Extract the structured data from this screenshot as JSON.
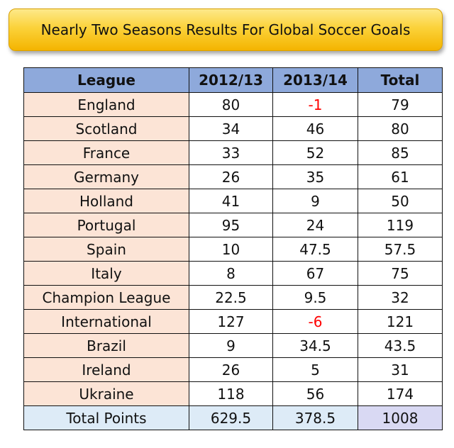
{
  "title": "Nearly Two Seasons Results For Global Soccer Goals",
  "colors": {
    "banner": "#fbd23a",
    "header": "#8ea9db",
    "league_cell": "#fce4d6",
    "total_row": "#ddebf7",
    "grand_total": "#d9d9f3",
    "negative": "#ff0000"
  },
  "chart_data": {
    "type": "table",
    "title": "Nearly Two Seasons Results For Global Soccer Goals",
    "columns": [
      "League",
      "2012/13",
      "2013/14",
      "Total"
    ],
    "rows": [
      {
        "league": "England",
        "s2012_13": "80",
        "s2013_14": "-1",
        "total": "79"
      },
      {
        "league": "Scotland",
        "s2012_13": "34",
        "s2013_14": "46",
        "total": "80"
      },
      {
        "league": "France",
        "s2012_13": "33",
        "s2013_14": "52",
        "total": "85"
      },
      {
        "league": "Germany",
        "s2012_13": "26",
        "s2013_14": "35",
        "total": "61"
      },
      {
        "league": "Holland",
        "s2012_13": "41",
        "s2013_14": "9",
        "total": "50"
      },
      {
        "league": "Portugal",
        "s2012_13": "95",
        "s2013_14": "24",
        "total": "119"
      },
      {
        "league": "Spain",
        "s2012_13": "10",
        "s2013_14": "47.5",
        "total": "57.5"
      },
      {
        "league": "Italy",
        "s2012_13": "8",
        "s2013_14": "67",
        "total": "75"
      },
      {
        "league": "Champion League",
        "s2012_13": "22.5",
        "s2013_14": "9.5",
        "total": "32"
      },
      {
        "league": "International",
        "s2012_13": "127",
        "s2013_14": "-6",
        "total": "121"
      },
      {
        "league": "Brazil",
        "s2012_13": "9",
        "s2013_14": "34.5",
        "total": "43.5"
      },
      {
        "league": "Ireland",
        "s2012_13": "26",
        "s2013_14": "5",
        "total": "31"
      },
      {
        "league": "Ukraine",
        "s2012_13": "118",
        "s2013_14": "56",
        "total": "174"
      }
    ],
    "totals": {
      "label": "Total Points",
      "s2012_13": "629.5",
      "s2013_14": "378.5",
      "total": "1008"
    }
  }
}
